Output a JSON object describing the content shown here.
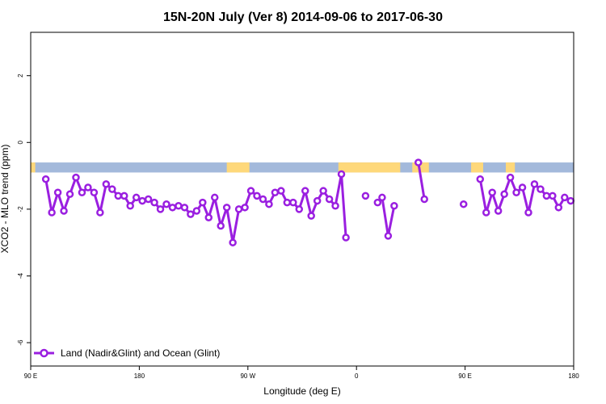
{
  "chart_data": {
    "type": "line",
    "title": "15N-20N July (Ver 8)   2014-09-06 to 2017-06-30",
    "xlabel": "Longitude (deg E)",
    "ylabel": "XCO2 - MLO trend (ppm)",
    "xlim": [
      0,
      360
    ],
    "ylim": [
      -6.7,
      3.3
    ],
    "x_ticks": [
      {
        "value": 0,
        "label": "90 E"
      },
      {
        "value": 72,
        "label": "180"
      },
      {
        "value": 144,
        "label": "90 W"
      },
      {
        "value": 216,
        "label": "0"
      },
      {
        "value": 288,
        "label": "90 E"
      },
      {
        "value": 360,
        "label": "180"
      }
    ],
    "y_ticks": [
      {
        "value": 2,
        "label": "2"
      },
      {
        "value": 0,
        "label": "0"
      },
      {
        "value": -2,
        "label": "-2"
      },
      {
        "value": -4,
        "label": "-4"
      },
      {
        "value": -6,
        "label": "-6"
      }
    ],
    "grid": false,
    "legend_position": "bottom-left",
    "map_strip": {
      "y_range": [
        -0.9,
        -0.6
      ],
      "ocean_color": "#a3b9db",
      "land_color": "#fed87a",
      "land_segments": [
        [
          0,
          3
        ],
        [
          130,
          145
        ],
        [
          204,
          245
        ],
        [
          253,
          264
        ],
        [
          292,
          300
        ],
        [
          315,
          321
        ]
      ]
    },
    "series": [
      {
        "name": "Land (Nadir&Glint) and Ocean (Glint)",
        "color": "#9a1fe0",
        "points": [
          [
            10,
            -1.1
          ],
          [
            14,
            -2.1
          ],
          [
            18,
            -1.5
          ],
          [
            22,
            -2.05
          ],
          [
            26,
            -1.55
          ],
          [
            30,
            -1.05
          ],
          [
            34,
            -1.5
          ],
          [
            38,
            -1.35
          ],
          [
            42,
            -1.5
          ],
          [
            46,
            -2.1
          ],
          [
            50,
            -1.25
          ],
          [
            54,
            -1.4
          ],
          [
            58,
            -1.6
          ],
          [
            62,
            -1.6
          ],
          [
            66,
            -1.9
          ],
          [
            70,
            -1.65
          ],
          [
            74,
            -1.75
          ],
          [
            78,
            -1.7
          ],
          [
            82,
            -1.8
          ],
          [
            86,
            -2.0
          ],
          [
            90,
            -1.85
          ],
          [
            94,
            -1.95
          ],
          [
            98,
            -1.9
          ],
          [
            102,
            -1.95
          ],
          [
            106,
            -2.15
          ],
          [
            110,
            -2.05
          ],
          [
            114,
            -1.8
          ],
          [
            118,
            -2.25
          ],
          [
            122,
            -1.65
          ],
          [
            126,
            -2.5
          ],
          [
            130,
            -1.95
          ],
          [
            134,
            -3.0
          ],
          [
            138,
            -2.0
          ],
          [
            142,
            -1.95
          ],
          [
            146,
            -1.45
          ],
          [
            150,
            -1.6
          ],
          [
            154,
            -1.7
          ],
          [
            158,
            -1.85
          ],
          [
            162,
            -1.5
          ],
          [
            166,
            -1.45
          ],
          [
            170,
            -1.8
          ],
          [
            174,
            -1.8
          ],
          [
            178,
            -2.0
          ],
          [
            182,
            -1.45
          ],
          [
            186,
            -2.2
          ],
          [
            190,
            -1.75
          ],
          [
            194,
            -1.45
          ],
          [
            198,
            -1.7
          ],
          [
            202,
            -1.9
          ],
          [
            206,
            -0.95
          ],
          [
            209,
            -2.85
          ],
          null,
          [
            222,
            -1.6
          ],
          null,
          [
            230,
            -1.8
          ],
          [
            233,
            -1.65
          ],
          [
            237,
            -2.8
          ],
          [
            241,
            -1.9
          ],
          null,
          [
            257,
            -0.6
          ],
          [
            261,
            -1.7
          ],
          null,
          [
            287,
            -1.85
          ],
          null,
          [
            298,
            -1.1
          ],
          [
            302,
            -2.1
          ],
          [
            306,
            -1.5
          ],
          [
            310,
            -2.05
          ],
          [
            314,
            -1.55
          ],
          [
            318,
            -1.05
          ],
          [
            322,
            -1.5
          ],
          [
            326,
            -1.35
          ],
          [
            330,
            -2.1
          ],
          [
            334,
            -1.25
          ],
          [
            338,
            -1.4
          ],
          [
            342,
            -1.6
          ],
          [
            346,
            -1.6
          ],
          [
            350,
            -1.95
          ],
          [
            354,
            -1.65
          ],
          [
            358,
            -1.75
          ]
        ]
      }
    ]
  }
}
